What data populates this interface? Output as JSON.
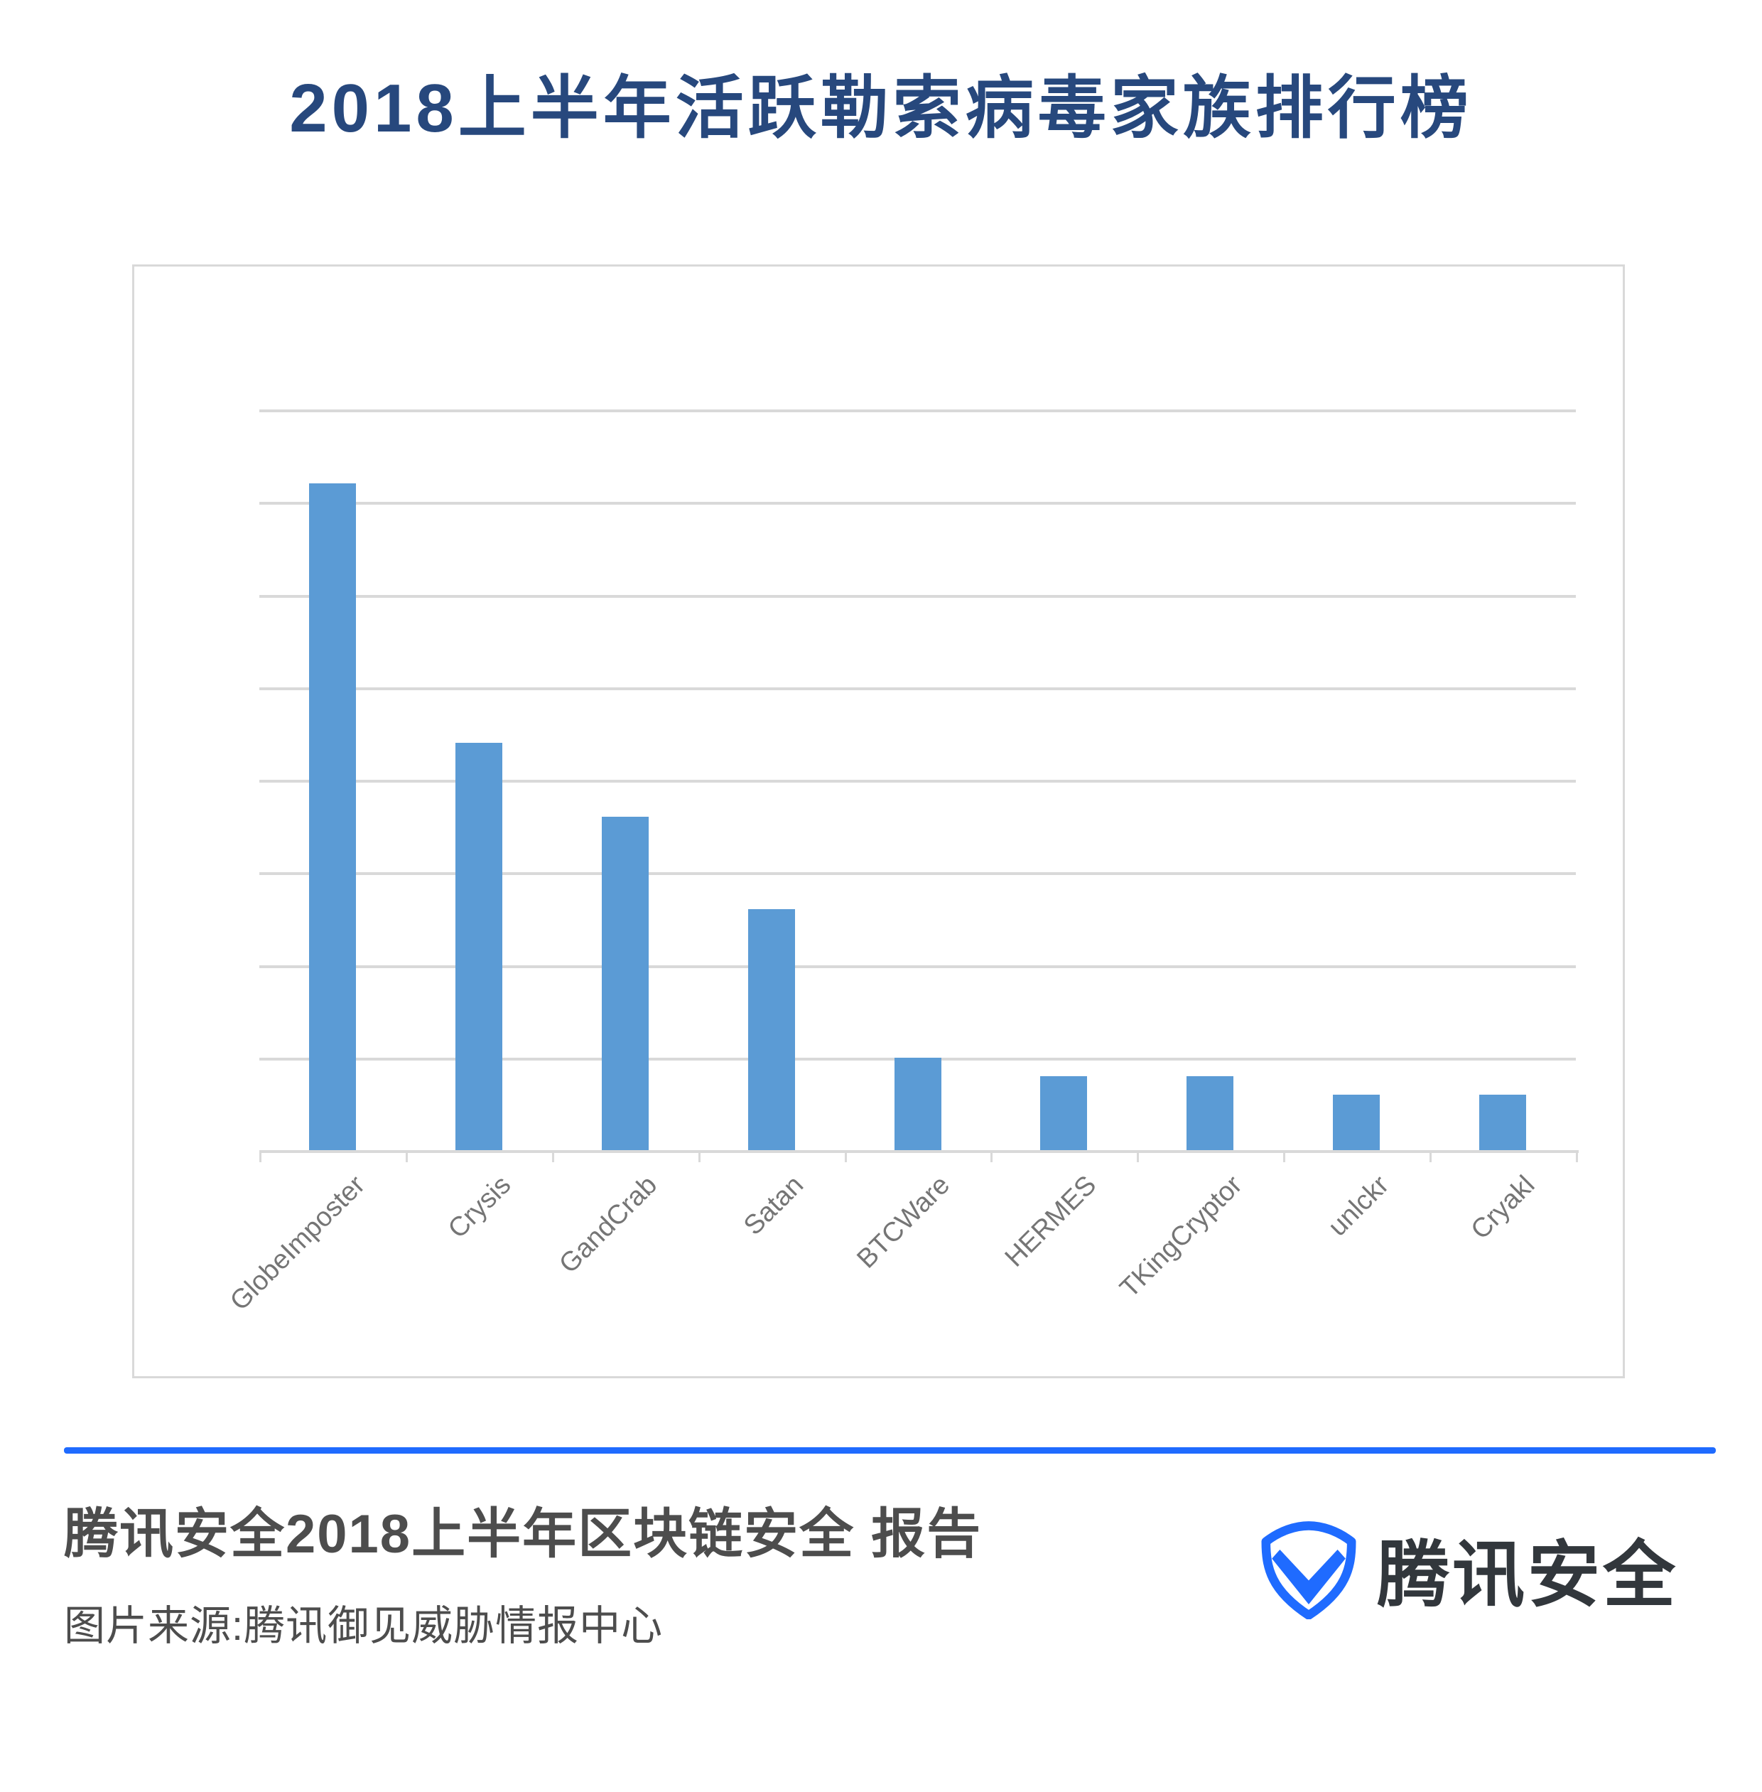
{
  "page": {
    "background": "#FFFFFF"
  },
  "title": {
    "text": "2018上半年活跃勒索病毒家族排行榜",
    "color": "#27487D"
  },
  "chart_data": {
    "type": "bar",
    "title": "2018上半年活跃勒索病毒家族排行榜",
    "categories": [
      "GlobeImposter",
      "Crysis",
      "GandCrab",
      "Satan",
      "BTCWare",
      "HERMES",
      "TKingCryptor",
      "unlckr",
      "Cryakl"
    ],
    "values": [
      7.2,
      4.4,
      3.6,
      2.6,
      1.0,
      0.8,
      0.8,
      0.6,
      0.6
    ],
    "xlabel": "",
    "ylabel": "",
    "ylim": [
      0,
      8
    ],
    "grid": "horizontal gridlines, unlabeled",
    "y_tick_labels": "none (no numeric axis labels shown)",
    "legend_position": "none",
    "bar_color": "#5B9BD5",
    "axis_color": "#D9D9D9",
    "x_label_color": "#757575",
    "x_label_rotation_deg": -45
  },
  "footer": {
    "divider_color": "#1F6BFF",
    "report_title": "腾讯安全2018上半年区块链安全 报告",
    "source_line": "图片来源:腾讯御见威胁情报中心",
    "text_color": "#4D4D4D",
    "brand": {
      "name": "腾讯安全",
      "logo_icon": "shield-check",
      "logo_color": "#1F6BFF",
      "name_color": "#32373C"
    }
  }
}
